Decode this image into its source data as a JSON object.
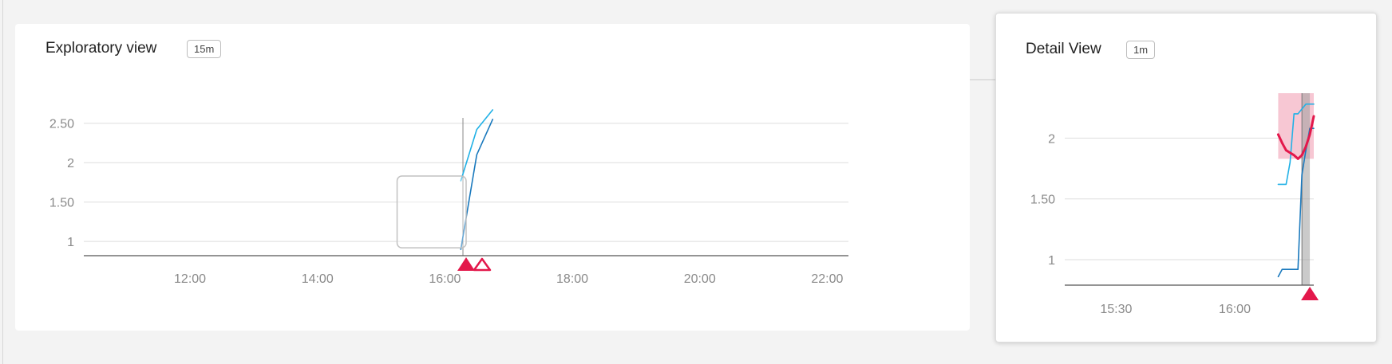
{
  "exploratory": {
    "title": "Exploratory view",
    "interval_badge": "15m"
  },
  "detail": {
    "title": "Detail View",
    "interval_badge": "1m"
  },
  "colors": {
    "series_light": "#21b1e6",
    "series_dark": "#1a79bd",
    "anomaly": "#e3184b",
    "anomaly_band": "#f7c7d3",
    "selection_band": "#9f9f9f",
    "grid": "#dddddd",
    "axis": "#555555"
  },
  "chart_data": [
    {
      "type": "line",
      "name": "exploratory-view",
      "title": "Exploratory view",
      "x_unit": "time",
      "xlim": [
        "10:20",
        "22:20"
      ],
      "ylim": [
        0.82,
        2.75
      ],
      "x_ticks": [
        "12:00",
        "14:00",
        "16:00",
        "18:00",
        "20:00",
        "22:00"
      ],
      "y_ticks": [
        {
          "value": 1,
          "label": "1"
        },
        {
          "value": 1.5,
          "label": "1.50"
        },
        {
          "value": 2,
          "label": "2"
        },
        {
          "value": 2.5,
          "label": "2.50"
        }
      ],
      "grid": true,
      "series": [
        {
          "color": "#21b1e6",
          "x": [
            "16:15",
            "16:30",
            "16:45"
          ],
          "y": [
            1.77,
            2.42,
            2.67
          ]
        },
        {
          "color": "#1a79bd",
          "x": [
            "16:15",
            "16:30",
            "16:45"
          ],
          "y": [
            0.9,
            2.1,
            2.55
          ]
        }
      ],
      "cursor_x": "16:17",
      "brush": {
        "from": "15:15",
        "to": "16:20",
        "y_from": 0.92,
        "y_to": 1.83
      },
      "markers": [
        {
          "x": "16:20",
          "style": "filled",
          "color": "#e3184b"
        },
        {
          "x": "16:35",
          "style": "outline",
          "color": "#e3184b"
        }
      ]
    },
    {
      "type": "line",
      "name": "detail-view",
      "title": "Detail View",
      "x_unit": "time",
      "xlim": [
        "15:17",
        "16:20"
      ],
      "ylim": [
        0.79,
        2.37
      ],
      "x_ticks": [
        "15:30",
        "16:00"
      ],
      "y_ticks": [
        {
          "value": 1,
          "label": "1"
        },
        {
          "value": 1.5,
          "label": "1.50"
        },
        {
          "value": 2,
          "label": "2"
        }
      ],
      "grid": true,
      "series": [
        {
          "color": "#21b1e6",
          "x": [
            "16:11",
            "16:13",
            "16:14",
            "16:15",
            "16:16",
            "16:18",
            "16:19",
            "16:20"
          ],
          "y": [
            1.62,
            1.62,
            1.8,
            2.2,
            2.2,
            2.28,
            2.28,
            2.28
          ]
        },
        {
          "color": "#1a79bd",
          "x": [
            "16:11",
            "16:12",
            "16:16",
            "16:17",
            "16:18",
            "16:19",
            "16:20"
          ],
          "y": [
            0.86,
            0.92,
            0.92,
            1.7,
            1.9,
            2.08,
            2.08
          ]
        },
        {
          "color": "#e3184b",
          "x": [
            "16:11",
            "16:12",
            "16:13",
            "16:14",
            "16:15",
            "16:16",
            "16:17",
            "16:18",
            "16:19",
            "16:20"
          ],
          "y": [
            2.03,
            1.96,
            1.9,
            1.88,
            1.86,
            1.83,
            1.86,
            1.93,
            2.03,
            2.18
          ]
        }
      ],
      "anomaly_band": {
        "from": "16:11",
        "to": "16:20",
        "y_from": 1.83,
        "y_to": 2.37
      },
      "selection": {
        "from": "16:17",
        "to": "16:19"
      },
      "markers": [
        {
          "x": "16:19",
          "style": "filled",
          "color": "#e3184b"
        }
      ]
    }
  ]
}
